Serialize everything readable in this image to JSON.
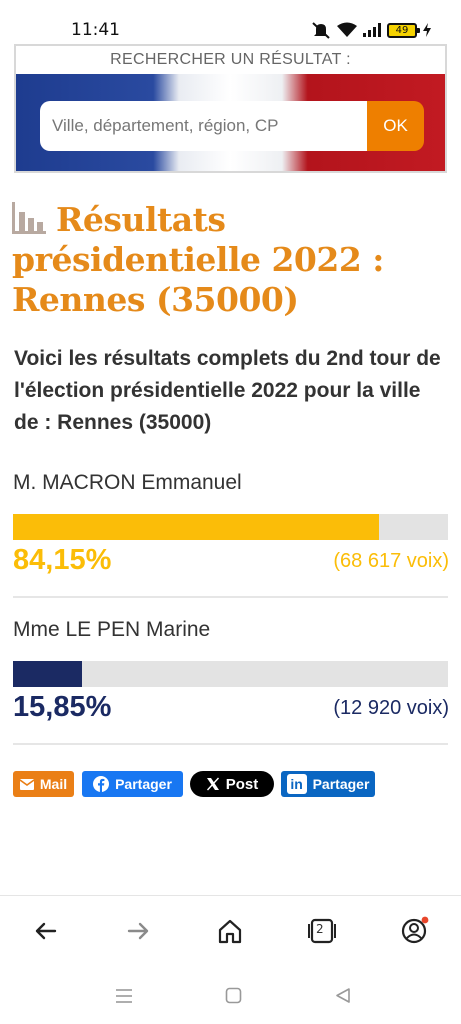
{
  "status": {
    "time": "11:41",
    "battery": "49"
  },
  "search": {
    "label": "RECHERCHER UN RÉSULTAT :",
    "placeholder": "Ville, département, région, CP",
    "ok_label": "OK"
  },
  "page": {
    "title": "Résultats présidentielle 2022 : Rennes (35000)",
    "intro": "Voici les résultats complets du 2nd tour de l'élection présidentielle 2022 pour la ville de : Rennes (35000)"
  },
  "candidates": [
    {
      "name": "M. MACRON Emmanuel",
      "percent_label": "84,15%",
      "percent": 84.15,
      "votes": "(68 617 voix)",
      "color": "#fbbd08"
    },
    {
      "name": "Mme LE PEN Marine",
      "percent_label": "15,85%",
      "percent": 15.85,
      "votes": "(12 920 voix)",
      "color": "#1b2a63"
    }
  ],
  "share": {
    "mail": "Mail",
    "facebook": "Partager",
    "x": "Post",
    "linkedin": "Partager"
  },
  "browser": {
    "tab_count": "2"
  },
  "colors": {
    "accent": "#e58a1a",
    "ok_button": "#ee7f00"
  }
}
